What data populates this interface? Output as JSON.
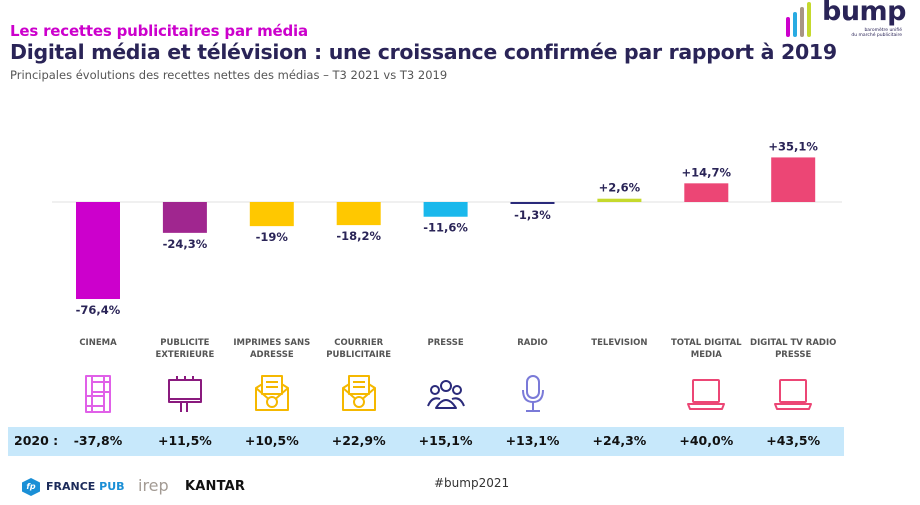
{
  "header": {
    "kicker": "Les recettes publicitaires par média",
    "title": "Digital média et télévision : une croissance confirmée par rapport à 2019",
    "subtitle": "Principales évolutions des recettes nettes des médias – T3 2021 vs T3 2019"
  },
  "logo": {
    "word": "bump",
    "tagline_line1": "baromètre unifié",
    "tagline_line2": "du marché publicitaire",
    "bar_colors": [
      "#cc00cc",
      "#29abe2",
      "#a89584",
      "#c5d92d"
    ]
  },
  "chart_data": {
    "type": "bar",
    "title": "Principales évolutions des recettes nettes des médias – T3 2021 vs T3 2019",
    "xlabel": "",
    "ylabel": "",
    "unit": "%",
    "ylim": [
      -80,
      40
    ],
    "grid": false,
    "legend": "none",
    "categories": [
      [
        "CINEMA"
      ],
      [
        "PUBLICITE",
        "EXTERIEURE"
      ],
      [
        "IMPRIMES SANS",
        "ADRESSE"
      ],
      [
        "COURRIER",
        "PUBLICITAIRE"
      ],
      [
        "PRESSE"
      ],
      [
        "RADIO"
      ],
      [
        "TELEVISION"
      ],
      [
        "TOTAL DIGITAL",
        "MEDIA"
      ],
      [
        "DIGITAL TV RADIO",
        "PRESSE"
      ]
    ],
    "values": [
      -76.4,
      -24.3,
      -19,
      -18.2,
      -11.6,
      -1.3,
      2.6,
      14.7,
      35.1
    ],
    "data_labels": [
      "-76,4%",
      "-24,3%",
      "-19%",
      "-18,2%",
      "-11,6%",
      "-1,3%",
      "+2,6%",
      "+14,7%",
      "+35,1%"
    ],
    "colors": [
      "#cc00cc",
      "#a0268f",
      "#ffc800",
      "#ffc800",
      "#1ab8ec",
      "#2a2a7a",
      "#c5d92d",
      "#ec4675",
      "#ec4675"
    ],
    "comparison_row": {
      "label": "2020 :",
      "values": [
        -37.8,
        11.5,
        10.5,
        22.9,
        15.1,
        13.1,
        24.3,
        40.0,
        43.5
      ],
      "display": [
        "-37,8%",
        "+11,5%",
        "+10,5%",
        "+22,9%",
        "+15,1%",
        "+13,1%",
        "+24,3%",
        "+40,0%",
        "+43,5%"
      ]
    }
  },
  "icons": [
    {
      "name": "film-strip-icon",
      "color": "#e060e8"
    },
    {
      "name": "billboard-icon",
      "color": "#8a1a7e"
    },
    {
      "name": "envelope-letter-icon",
      "color": "#f5b800"
    },
    {
      "name": "envelope-letter-icon",
      "color": "#f5b800"
    },
    {
      "name": "people-group-icon",
      "color": "#2a2a7a"
    },
    {
      "name": "microphone-icon",
      "color": "#7a7ad8"
    },
    {
      "name": "none",
      "color": ""
    },
    {
      "name": "laptop-icon",
      "color": "#ec4675"
    },
    {
      "name": "laptop-icon",
      "color": "#ec4675"
    }
  ],
  "footer": {
    "fp_mark": "fp",
    "france": "FRANCE",
    "pub": "PUB",
    "irep": "irep",
    "kantar": "KANTAR",
    "hashtag": "#bump2021"
  }
}
